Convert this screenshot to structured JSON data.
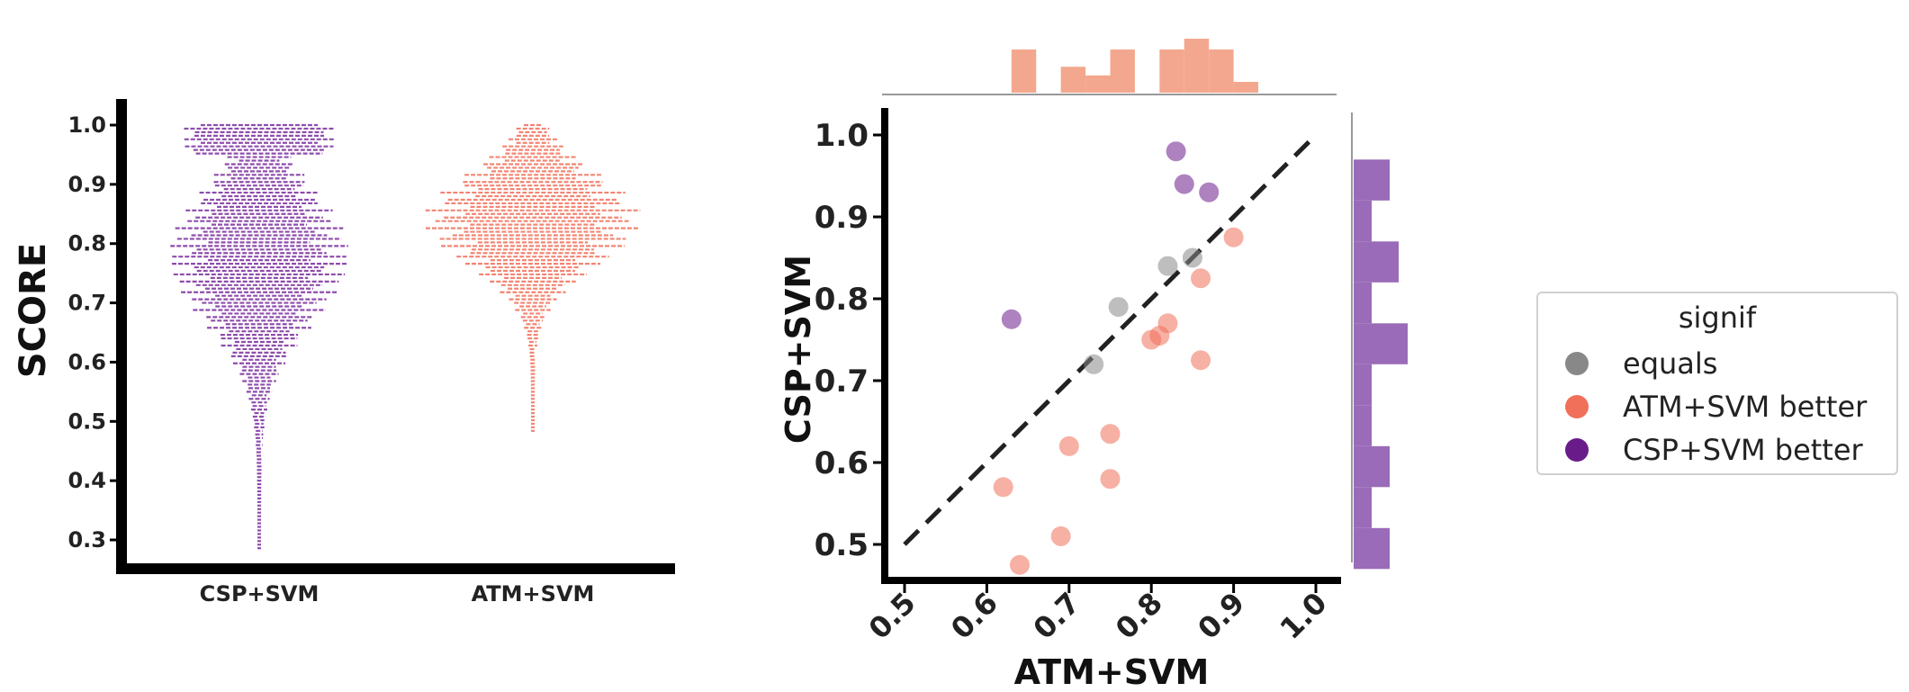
{
  "chart_data": [
    {
      "type": "swarm",
      "ylabel": "SCORE",
      "xlabel": "",
      "categories": [
        "CSP+SVM",
        "ATM+SVM"
      ],
      "ylim": [
        0.25,
        1.05
      ],
      "yticks": [
        "0.3",
        "0.4",
        "0.5",
        "0.6",
        "0.7",
        "0.8",
        "0.9",
        "1.0"
      ],
      "series": [
        {
          "name": "CSP+SVM",
          "color": "#7b2d9e",
          "range": [
            0.28,
            1.0
          ],
          "mode": 0.78
        },
        {
          "name": "ATM+SVM",
          "color": "#f0705a",
          "range": [
            0.48,
            1.0
          ],
          "mode": 0.84
        }
      ]
    },
    {
      "type": "scatter",
      "xlabel": "ATM+SVM",
      "ylabel": "CSP+SVM",
      "xlim": [
        0.47,
        1.03
      ],
      "ylim": [
        0.45,
        1.03
      ],
      "xticks": [
        "0.5",
        "0.6",
        "0.7",
        "0.8",
        "0.9",
        "1.0"
      ],
      "yticks": [
        "0.5",
        "0.6",
        "0.7",
        "0.8",
        "0.9",
        "1.0"
      ],
      "reference_line": {
        "from": [
          0.5,
          0.5
        ],
        "to": [
          1.0,
          1.0
        ],
        "style": "dashed"
      },
      "points": [
        {
          "x": 0.83,
          "y": 0.98,
          "group": "CSP+SVM better"
        },
        {
          "x": 0.84,
          "y": 0.94,
          "group": "CSP+SVM better"
        },
        {
          "x": 0.87,
          "y": 0.93,
          "group": "CSP+SVM better"
        },
        {
          "x": 0.63,
          "y": 0.775,
          "group": "CSP+SVM better"
        },
        {
          "x": 0.82,
          "y": 0.84,
          "group": "equals"
        },
        {
          "x": 0.85,
          "y": 0.85,
          "group": "equals"
        },
        {
          "x": 0.76,
          "y": 0.79,
          "group": "equals"
        },
        {
          "x": 0.73,
          "y": 0.72,
          "group": "equals"
        },
        {
          "x": 0.9,
          "y": 0.875,
          "group": "ATM+SVM better"
        },
        {
          "x": 0.86,
          "y": 0.825,
          "group": "ATM+SVM better"
        },
        {
          "x": 0.82,
          "y": 0.77,
          "group": "ATM+SVM better"
        },
        {
          "x": 0.8,
          "y": 0.75,
          "group": "ATM+SVM better"
        },
        {
          "x": 0.81,
          "y": 0.755,
          "group": "ATM+SVM better"
        },
        {
          "x": 0.86,
          "y": 0.725,
          "group": "ATM+SVM better"
        },
        {
          "x": 0.75,
          "y": 0.635,
          "group": "ATM+SVM better"
        },
        {
          "x": 0.7,
          "y": 0.62,
          "group": "ATM+SVM better"
        },
        {
          "x": 0.75,
          "y": 0.58,
          "group": "ATM+SVM better"
        },
        {
          "x": 0.62,
          "y": 0.57,
          "group": "ATM+SVM better"
        },
        {
          "x": 0.69,
          "y": 0.51,
          "group": "ATM+SVM better"
        },
        {
          "x": 0.64,
          "y": 0.475,
          "group": "ATM+SVM better"
        }
      ],
      "top_histogram": {
        "bins": [
          0.63,
          0.66,
          0.69,
          0.72,
          0.75,
          0.78,
          0.81,
          0.84,
          0.87,
          0.9
        ],
        "counts": [
          2,
          0,
          1.2,
          0.8,
          2,
          0,
          2,
          2.5,
          2,
          0.5
        ],
        "color": "#f4a78f"
      },
      "right_histogram": {
        "bins": [
          0.47,
          0.52,
          0.57,
          0.62,
          0.67,
          0.72,
          0.77,
          0.82,
          0.87,
          0.92,
          0.97
        ],
        "counts": [
          2,
          1,
          2,
          1,
          1,
          3,
          1,
          2.5,
          1,
          2
        ],
        "color": "#9a6bb8"
      }
    }
  ],
  "legend": {
    "title": "signif",
    "entries": [
      {
        "label": "equals",
        "color": "#888888"
      },
      {
        "label": "ATM+SVM better",
        "color": "#f0705a"
      },
      {
        "label": "CSP+SVM better",
        "color": "#6a1b8a"
      }
    ]
  }
}
